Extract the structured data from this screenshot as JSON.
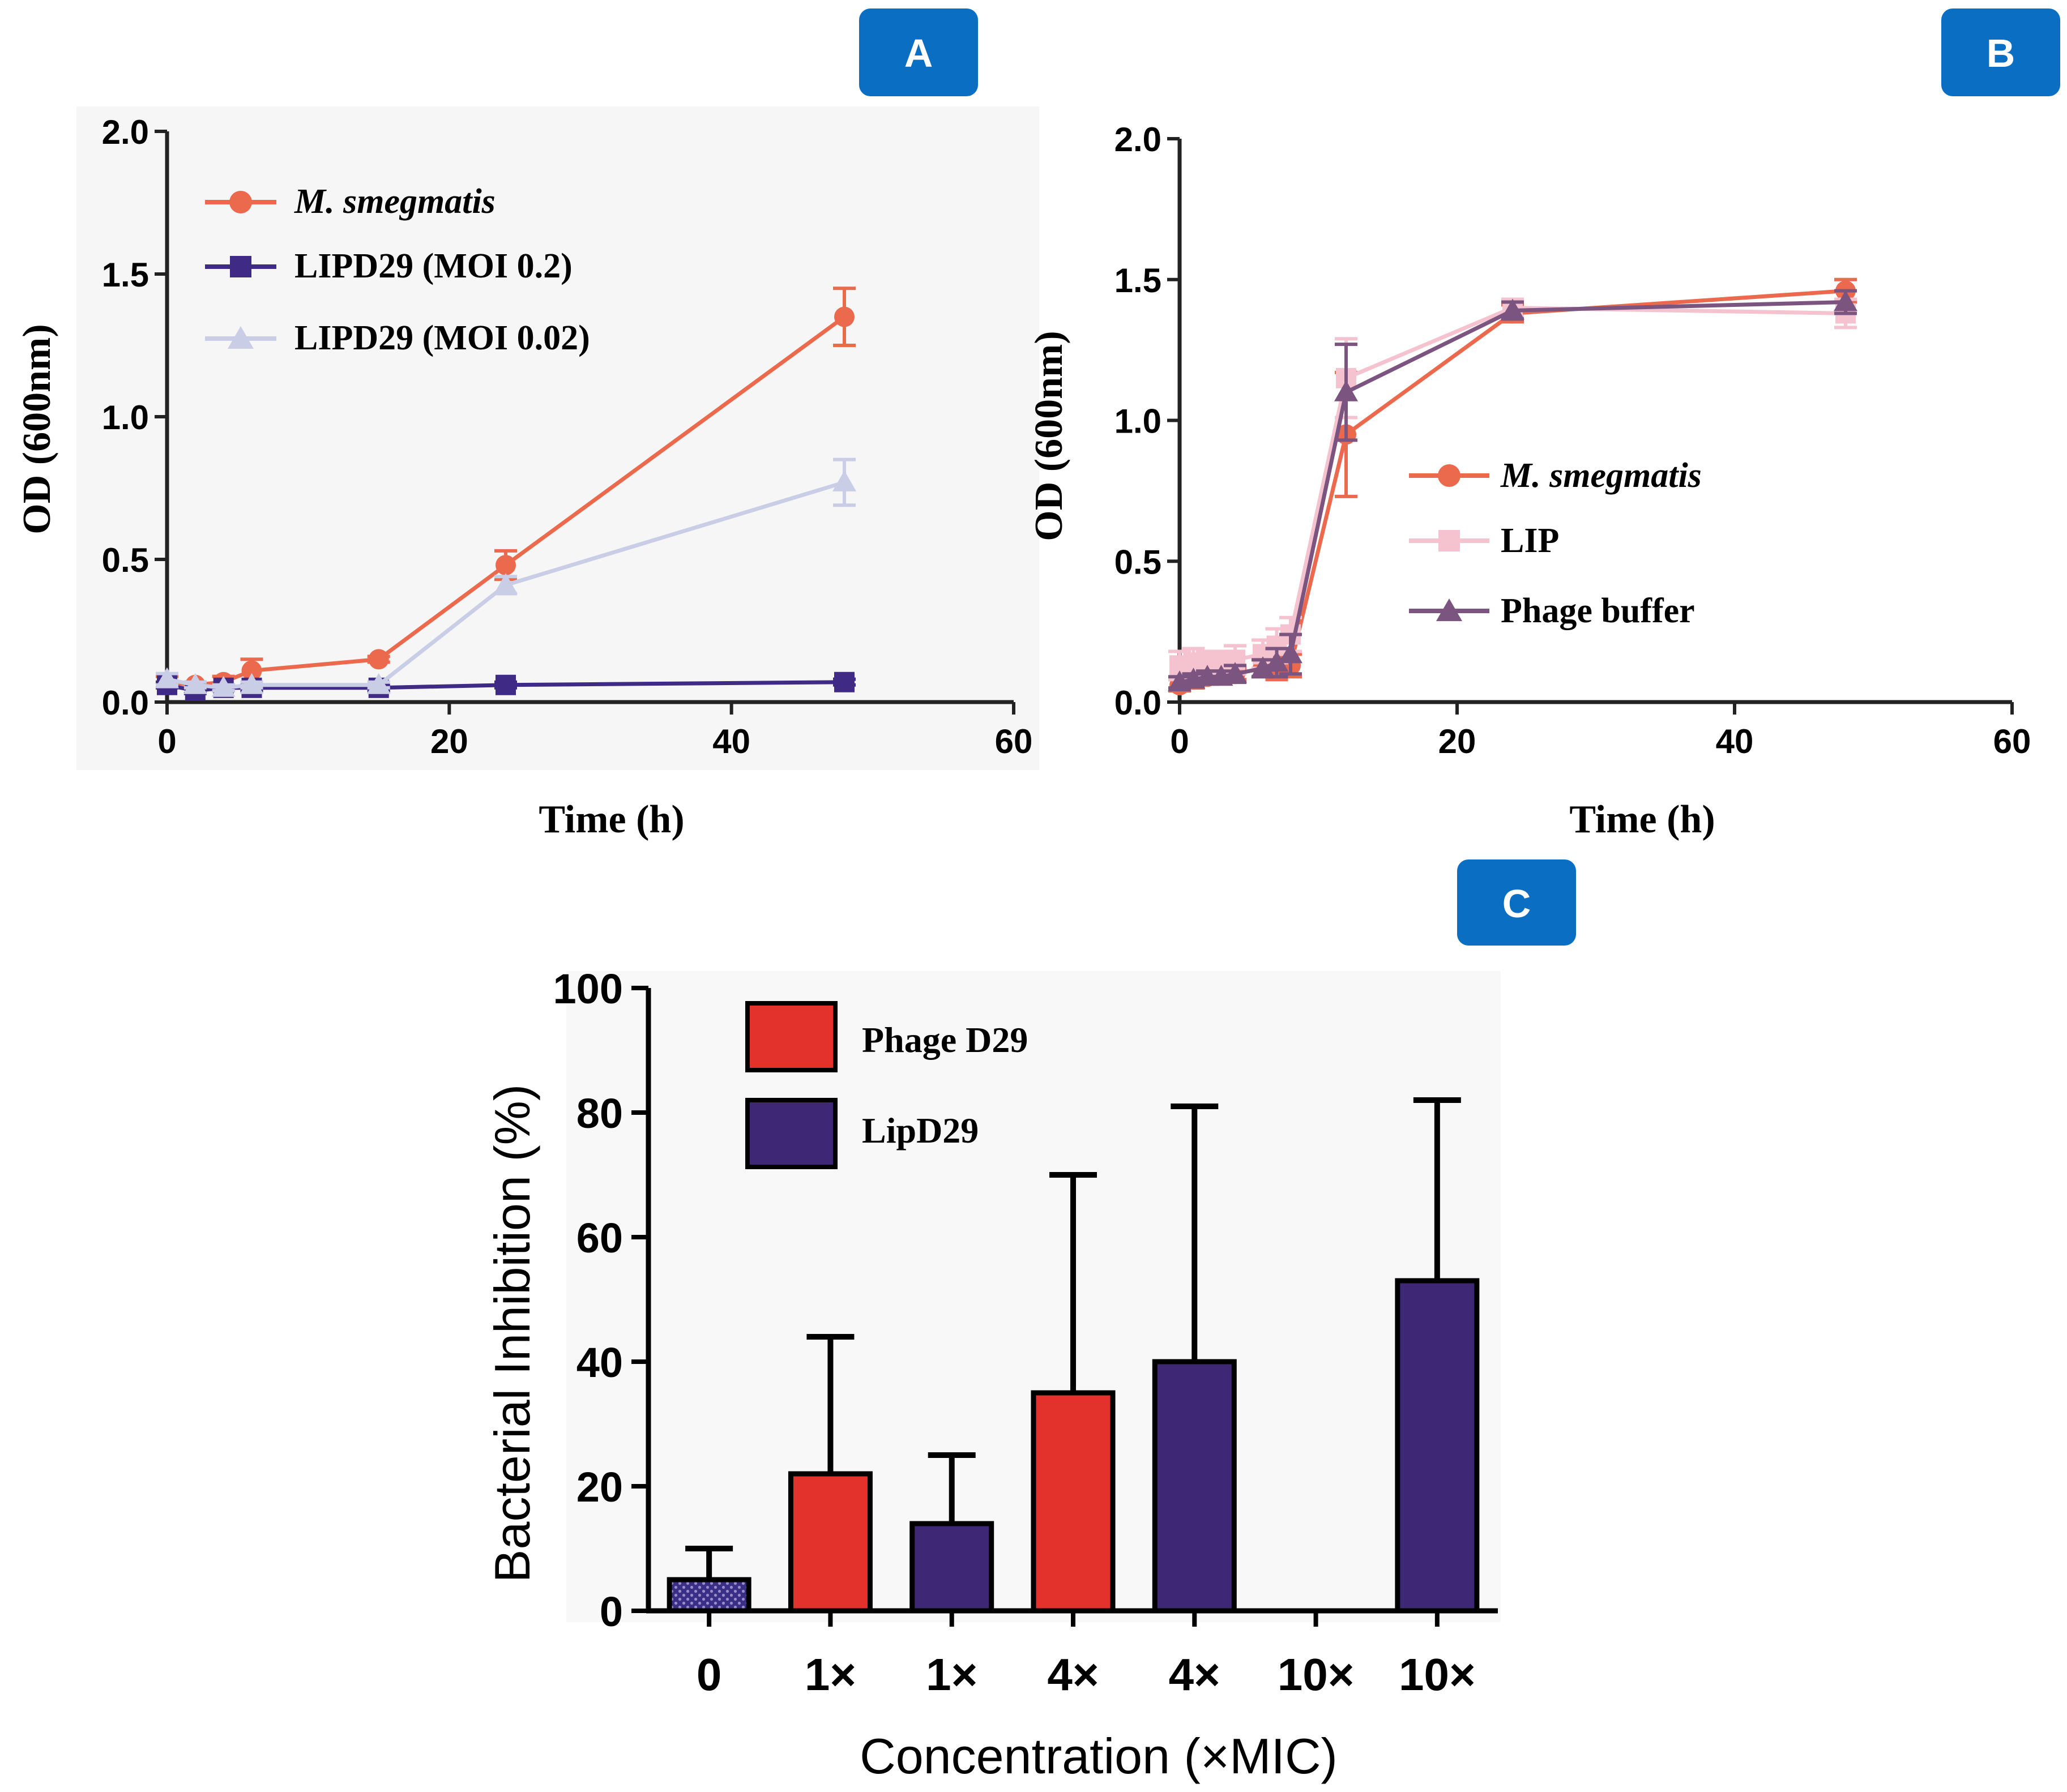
{
  "colors": {
    "smeg": "#EB6A4E",
    "lipd29_02": "#3F2A86",
    "lipd29_002": "#C9CDE6",
    "lip": "#F5C3D0",
    "phage_buffer": "#7B5580",
    "phage_d29": "#E3312C",
    "lipd29_bar": "#3E2775",
    "control_bar": "#3A2F86",
    "badge": "#0A6FC2",
    "badge_text": "#ffffff"
  },
  "chart_data": [
    {
      "id": "A",
      "badge": "A",
      "type": "line",
      "xlabel": "Time (h)",
      "ylabel": "OD (600nm)",
      "xlim": [
        0,
        60
      ],
      "ylim": [
        0,
        2.0
      ],
      "xticks": [
        0,
        20,
        40,
        60
      ],
      "xtick_labels": [
        "0",
        "20",
        "40",
        "60"
      ],
      "yticks": [
        0,
        0.5,
        1.0,
        1.5,
        2.0
      ],
      "ytick_labels": [
        "0.0",
        "0.5",
        "1.0",
        "1.5",
        "2.0"
      ],
      "series": [
        {
          "name": "M. smegmatis",
          "italic": true,
          "marker": "circle",
          "color_key": "smeg",
          "x": [
            0,
            2,
            4,
            6,
            15,
            24,
            48
          ],
          "y": [
            0.07,
            0.06,
            0.07,
            0.11,
            0.15,
            0.48,
            1.35
          ],
          "err": [
            0.02,
            0.01,
            0.02,
            0.04,
            0.01,
            0.05,
            0.1
          ]
        },
        {
          "name": "LIPD29 (MOI 0.2)",
          "italic": false,
          "marker": "square",
          "color_key": "lipd29_02",
          "x": [
            0,
            2,
            4,
            6,
            15,
            24,
            48
          ],
          "y": [
            0.06,
            0.04,
            0.05,
            0.05,
            0.05,
            0.06,
            0.07
          ],
          "err": [
            0.01,
            0.01,
            0.01,
            0.01,
            0.01,
            0.01,
            0.01
          ]
        },
        {
          "name": "LIPD29 (MOI 0.02)",
          "italic": false,
          "marker": "triangle",
          "color_key": "lipd29_002",
          "x": [
            0,
            2,
            4,
            6,
            15,
            24,
            48
          ],
          "y": [
            0.08,
            0.06,
            0.05,
            0.06,
            0.06,
            0.41,
            0.77
          ],
          "err": [
            0.02,
            0.01,
            0.01,
            0.01,
            0.01,
            0.03,
            0.08
          ]
        }
      ],
      "legend_position": "top-left"
    },
    {
      "id": "B",
      "badge": "B",
      "type": "line",
      "xlabel": "Time (h)",
      "ylabel": "OD (600nm)",
      "xlim": [
        0,
        60
      ],
      "ylim": [
        0,
        2.0
      ],
      "xticks": [
        0,
        20,
        40,
        60
      ],
      "xtick_labels": [
        "0",
        "20",
        "40",
        "60"
      ],
      "yticks": [
        0,
        0.5,
        1.0,
        1.5,
        2.0
      ],
      "ytick_labels": [
        "0.0",
        "0.5",
        "1.0",
        "1.5",
        "2.0"
      ],
      "series": [
        {
          "name": "M. smegmatis",
          "italic": true,
          "marker": "circle",
          "color_key": "smeg",
          "x": [
            0,
            1,
            2,
            3,
            4,
            6,
            7,
            8,
            12,
            24,
            48
          ],
          "y": [
            0.06,
            0.08,
            0.09,
            0.1,
            0.1,
            0.12,
            0.12,
            0.13,
            0.95,
            1.38,
            1.46
          ],
          "err": [
            0.02,
            0.03,
            0.02,
            0.02,
            0.02,
            0.03,
            0.04,
            0.04,
            0.22,
            0.03,
            0.04
          ]
        },
        {
          "name": "LIP",
          "italic": false,
          "marker": "square",
          "color_key": "lip",
          "x": [
            0,
            1,
            2,
            3,
            4,
            6,
            7,
            8,
            12,
            24,
            48
          ],
          "y": [
            0.13,
            0.14,
            0.14,
            0.14,
            0.15,
            0.17,
            0.2,
            0.24,
            1.15,
            1.4,
            1.38
          ],
          "err": [
            0.05,
            0.05,
            0.04,
            0.04,
            0.05,
            0.05,
            0.06,
            0.06,
            0.14,
            0.03,
            0.05
          ]
        },
        {
          "name": "Phage buffer",
          "italic": false,
          "marker": "triangle",
          "color_key": "phage_buffer",
          "x": [
            0,
            1,
            2,
            3,
            4,
            6,
            7,
            8,
            12,
            24,
            48
          ],
          "y": [
            0.07,
            0.08,
            0.09,
            0.09,
            0.1,
            0.12,
            0.14,
            0.17,
            1.1,
            1.39,
            1.42
          ],
          "err": [
            0.02,
            0.02,
            0.02,
            0.02,
            0.03,
            0.03,
            0.05,
            0.07,
            0.17,
            0.03,
            0.04
          ]
        }
      ],
      "legend_position": "center-right"
    },
    {
      "id": "C",
      "badge": "C",
      "type": "bar",
      "xlabel": "Concentration (×MIC)",
      "ylabel": "Bacterial Inhibition (%)",
      "ylim": [
        0,
        100
      ],
      "yticks": [
        0,
        20,
        40,
        60,
        80,
        100
      ],
      "ytick_labels": [
        "0",
        "20",
        "40",
        "60",
        "80",
        "100"
      ],
      "categories": [
        "0",
        "1×",
        "1×",
        "4×",
        "4×",
        "10×",
        "10×"
      ],
      "values": [
        5,
        22,
        14,
        35,
        40,
        0,
        53
      ],
      "errors": [
        5,
        22,
        11,
        35,
        41,
        0,
        29
      ],
      "groups": [
        "control",
        "phage_d29",
        "lipd29",
        "phage_d29",
        "lipd29",
        "phage_d29",
        "lipd29"
      ],
      "legend": [
        {
          "name": "Phage D29",
          "color_key": "phage_d29"
        },
        {
          "name": "LipD29",
          "color_key": "lipd29_bar"
        }
      ],
      "legend_position": "top-left"
    }
  ]
}
